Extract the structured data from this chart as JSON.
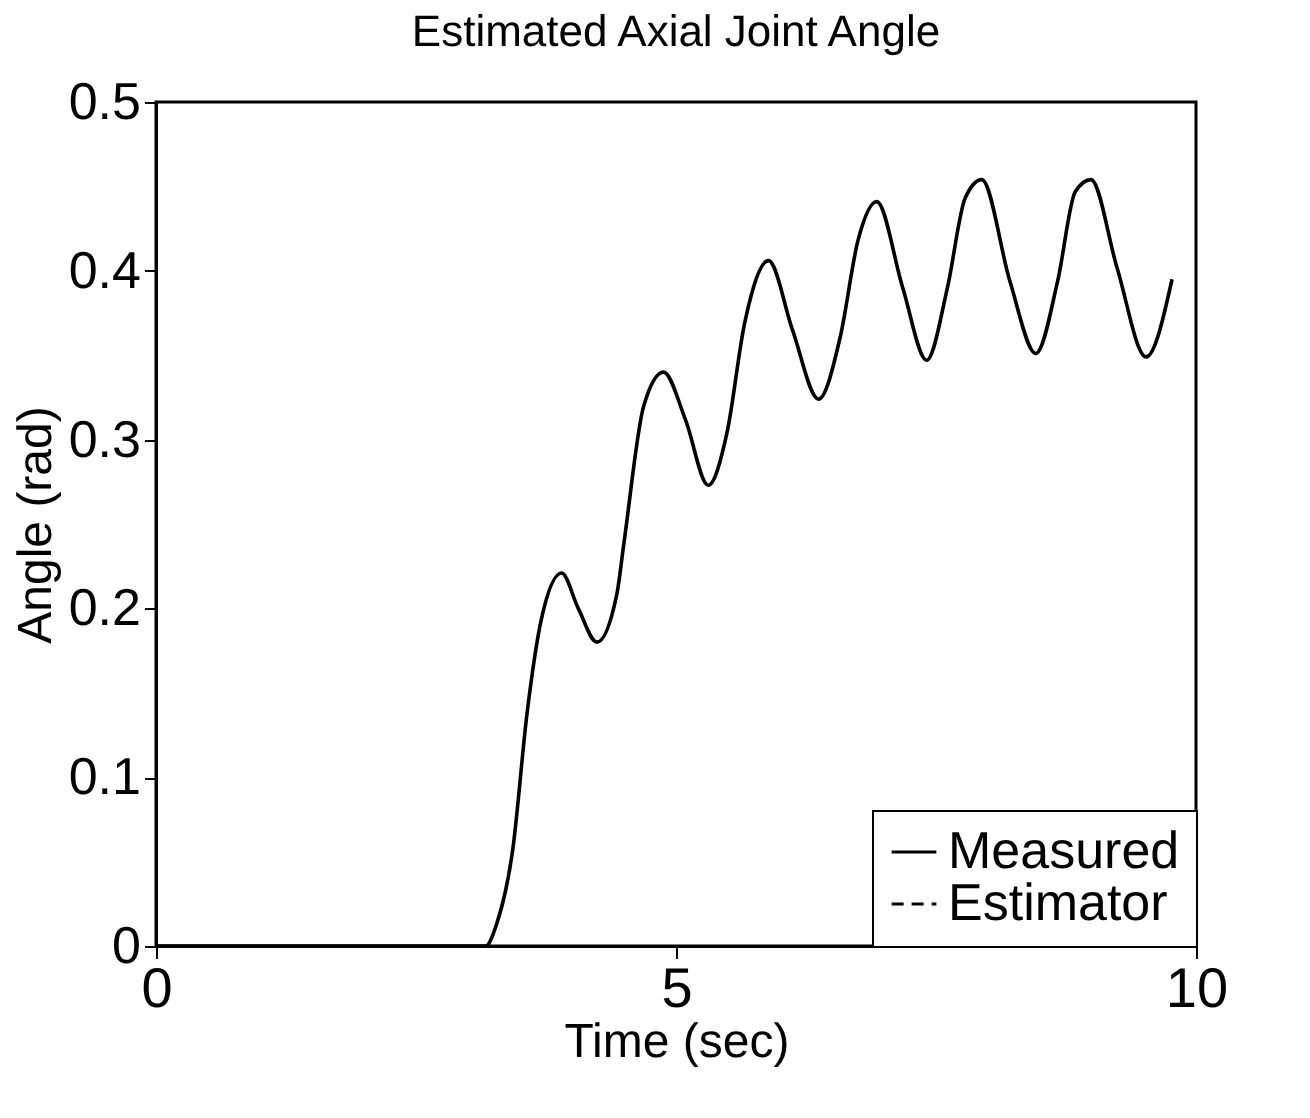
{
  "chart_data": {
    "type": "line",
    "title": "Estimated Axial Joint Angle",
    "xlabel": "Time (sec)",
    "ylabel": "Angle (rad)",
    "x": [
      0,
      3.17,
      3.27,
      3.43,
      3.57,
      3.7,
      3.9,
      4.06,
      4.24,
      4.43,
      4.5,
      4.69,
      4.88,
      5.09,
      5.31,
      5.49,
      5.66,
      5.89,
      6.12,
      6.37,
      6.58,
      6.75,
      6.93,
      7.18,
      7.41,
      7.61,
      7.78,
      7.94,
      8.21,
      8.46,
      8.67,
      8.84,
      8.99,
      9.24,
      9.52,
      9.77
    ],
    "series": [
      {
        "name": "Measured",
        "color": "#000000",
        "line_style": "solid",
        "values": [
          0,
          0,
          0.012,
          0.057,
          0.139,
          0.192,
          0.221,
          0.2,
          0.18,
          0.208,
          0.239,
          0.32,
          0.34,
          0.312,
          0.273,
          0.304,
          0.369,
          0.406,
          0.365,
          0.324,
          0.361,
          0.418,
          0.441,
          0.39,
          0.347,
          0.39,
          0.443,
          0.454,
          0.394,
          0.351,
          0.394,
          0.447,
          0.454,
          0.402,
          0.349,
          0.395
        ]
      },
      {
        "name": "Estimator",
        "color": "#000000",
        "line_style": "dashed",
        "values": [
          null,
          null,
          null,
          null,
          null,
          null,
          null,
          null,
          null,
          null,
          null,
          null,
          null,
          null,
          null,
          null,
          null,
          null,
          null,
          null,
          null,
          null,
          null,
          null,
          null,
          null,
          null,
          null,
          null,
          null,
          null,
          null,
          null,
          null,
          null,
          null
        ]
      }
    ],
    "xlim": [
      0,
      10
    ],
    "xticks": [
      0,
      5,
      10
    ],
    "ylim": [
      0,
      0.5
    ],
    "yticks": [
      {
        "value": 0,
        "label": "0"
      },
      0.1,
      0.2,
      0.3,
      0.4,
      0.5
    ],
    "grid": false,
    "legend": "bottom right",
    "marker": "none"
  }
}
